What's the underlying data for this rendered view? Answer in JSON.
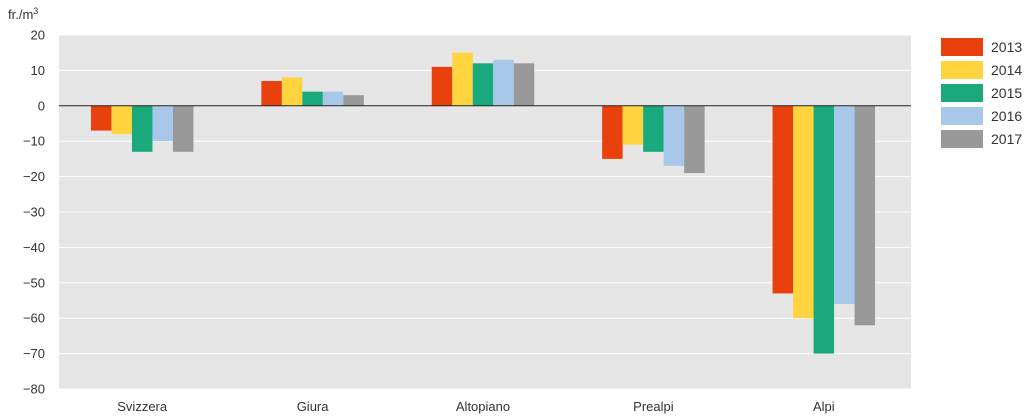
{
  "chart_data": {
    "type": "bar",
    "title": "",
    "ylabel": "fr./m",
    "ylabel_sup": "3",
    "ylim": [
      -80,
      20
    ],
    "yticks": [
      20,
      10,
      0,
      -10,
      -20,
      -30,
      -40,
      -50,
      -60,
      -70,
      -80
    ],
    "ytick_labels": [
      "20",
      "10",
      "0",
      "−10",
      "−20",
      "−30",
      "−40",
      "−50",
      "−60",
      "−70",
      "−80"
    ],
    "grid": true,
    "legend_position": "right",
    "categories": [
      "Svizzera",
      "Giura",
      "Altopiano",
      "Prealpi",
      "Alpi"
    ],
    "series": [
      {
        "name": "2013",
        "color": "#e8410e",
        "values": [
          -7,
          7,
          11,
          -15,
          -53
        ]
      },
      {
        "name": "2014",
        "color": "#ffd43f",
        "values": [
          -8,
          8,
          15,
          -11,
          -60
        ]
      },
      {
        "name": "2015",
        "color": "#1aa97c",
        "values": [
          -13,
          4,
          12,
          -13,
          -70
        ]
      },
      {
        "name": "2016",
        "color": "#a8c8ea",
        "values": [
          -10,
          4,
          13,
          -17,
          -56
        ]
      },
      {
        "name": "2017",
        "color": "#999999",
        "values": [
          -13,
          3,
          12,
          -19,
          -62
        ]
      }
    ]
  }
}
